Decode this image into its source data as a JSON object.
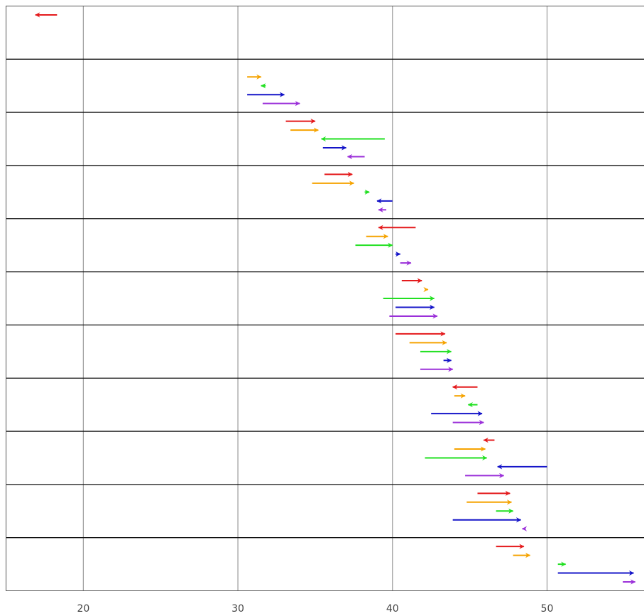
{
  "chart_data": {
    "type": "arrow-range",
    "title": "",
    "xlabel": "",
    "ylabel": "",
    "xlim": [
      15,
      56.8
    ],
    "x_ticks": [
      "20",
      "30",
      "40",
      "50"
    ],
    "x_tick_values": [
      20,
      30,
      40,
      50
    ],
    "grid": true,
    "series_colors": [
      "#e41a1c",
      "#f5a300",
      "#22e022",
      "#1414c8",
      "#9b30d9"
    ],
    "groups": [
      {
        "arrows": [
          {
            "from": 18.3,
            "to": 16.9
          },
          null,
          null,
          null,
          null
        ]
      },
      {
        "arrows": [
          null,
          {
            "from": 30.6,
            "to": 31.5
          },
          {
            "from": 31.8,
            "to": 31.5
          },
          {
            "from": 30.6,
            "to": 33.0
          },
          {
            "from": 31.6,
            "to": 34.0
          }
        ]
      },
      {
        "arrows": [
          {
            "from": 33.1,
            "to": 35.0
          },
          {
            "from": 33.4,
            "to": 35.2
          },
          {
            "from": 39.5,
            "to": 35.4
          },
          {
            "from": 35.5,
            "to": 37.0
          },
          {
            "from": 38.2,
            "to": 37.1
          }
        ]
      },
      {
        "arrows": [
          {
            "from": 35.6,
            "to": 37.4
          },
          {
            "from": 34.8,
            "to": 37.5
          },
          {
            "from": 38.2,
            "to": 38.5
          },
          {
            "from": 40.0,
            "to": 39.0
          },
          {
            "from": 39.6,
            "to": 39.1
          }
        ]
      },
      {
        "arrows": [
          {
            "from": 41.5,
            "to": 39.1
          },
          {
            "from": 38.3,
            "to": 39.7
          },
          {
            "from": 37.6,
            "to": 40.0
          },
          {
            "from": 40.2,
            "to": 40.5
          },
          {
            "from": 40.5,
            "to": 41.2
          }
        ]
      },
      {
        "arrows": [
          {
            "from": 40.6,
            "to": 41.9
          },
          {
            "from": 42.1,
            "to": 42.3
          },
          {
            "from": 39.4,
            "to": 42.7
          },
          {
            "from": 40.2,
            "to": 42.7
          },
          {
            "from": 39.8,
            "to": 42.9
          }
        ]
      },
      {
        "arrows": [
          {
            "from": 40.2,
            "to": 43.4
          },
          {
            "from": 41.1,
            "to": 43.5
          },
          {
            "from": 41.8,
            "to": 43.8
          },
          {
            "from": 43.3,
            "to": 43.8
          },
          {
            "from": 41.8,
            "to": 43.9
          }
        ]
      },
      {
        "arrows": [
          {
            "from": 45.5,
            "to": 43.9
          },
          {
            "from": 44.0,
            "to": 44.7
          },
          {
            "from": 45.5,
            "to": 44.9
          },
          {
            "from": 42.5,
            "to": 45.8
          },
          {
            "from": 43.9,
            "to": 45.9
          }
        ]
      },
      {
        "arrows": [
          {
            "from": 46.6,
            "to": 45.9
          },
          {
            "from": 44.0,
            "to": 46.0
          },
          {
            "from": 42.1,
            "to": 46.1
          },
          {
            "from": 50.0,
            "to": 46.8
          },
          {
            "from": 44.7,
            "to": 47.2
          }
        ]
      },
      {
        "arrows": [
          {
            "from": 45.5,
            "to": 47.6
          },
          {
            "from": 44.8,
            "to": 47.7
          },
          {
            "from": 46.7,
            "to": 47.8
          },
          {
            "from": 43.9,
            "to": 48.3
          },
          {
            "from": 48.6,
            "to": 48.4
          }
        ]
      },
      {
        "arrows": [
          {
            "from": 46.7,
            "to": 48.5
          },
          {
            "from": 47.8,
            "to": 48.9
          },
          {
            "from": 50.7,
            "to": 51.2
          },
          {
            "from": 50.7,
            "to": 55.6
          },
          {
            "from": 54.9,
            "to": 55.7
          }
        ]
      }
    ]
  }
}
